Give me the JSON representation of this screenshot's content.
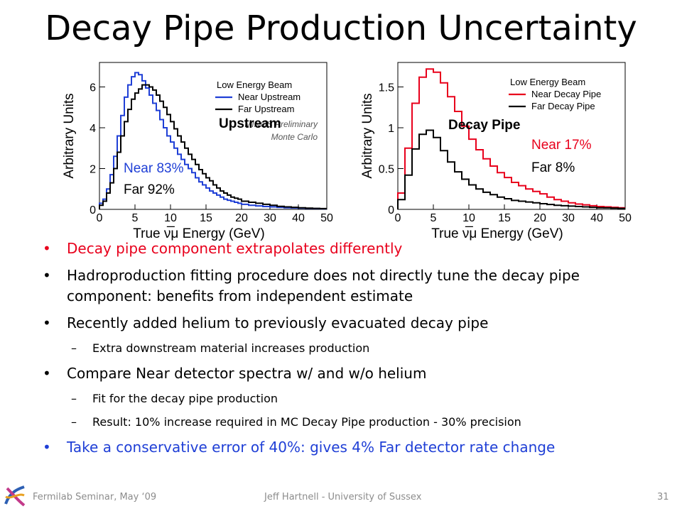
{
  "title": "Decay Pipe Production Uncertainty",
  "chart_data": [
    {
      "type": "line",
      "xlabel": "True ν̅μ Energy (GeV)",
      "ylabel": "Arbitrary Units",
      "overlay": "Upstream",
      "legend_title": "Low Energy Beam",
      "notes": [
        "MINOS Preliminary",
        "Monte Carlo"
      ],
      "legend_position": "upper-right",
      "step": true,
      "xscale": "piecewise (linear 0-20, compressed 20-50)",
      "xticks": [
        0,
        5,
        10,
        15,
        20,
        30,
        40,
        50
      ],
      "yticks": [
        0,
        2,
        4,
        6
      ],
      "ylim": [
        0,
        7.2
      ],
      "x_edges": [
        0,
        0.5,
        1,
        1.5,
        2,
        2.5,
        3,
        3.5,
        4,
        4.5,
        5,
        5.5,
        6,
        6.5,
        7,
        7.5,
        8,
        8.5,
        9,
        9.5,
        10,
        10.5,
        11,
        11.5,
        12,
        12.5,
        13,
        13.5,
        14,
        14.5,
        15,
        15.5,
        16,
        16.5,
        17,
        17.5,
        18,
        18.5,
        19,
        19.5,
        20,
        22.5,
        25,
        27.5,
        30,
        32.5,
        35,
        37.5,
        40,
        42.5,
        45,
        47.5,
        50
      ],
      "series": [
        {
          "name": "Near Upstream",
          "color": "#1f3fd6",
          "values": [
            0.3,
            0.5,
            1.0,
            1.7,
            2.6,
            3.6,
            4.6,
            5.5,
            6.1,
            6.5,
            6.7,
            6.6,
            6.3,
            5.95,
            5.6,
            5.2,
            4.85,
            4.4,
            4.0,
            3.6,
            3.3,
            3.0,
            2.7,
            2.45,
            2.2,
            2.0,
            1.8,
            1.55,
            1.35,
            1.2,
            1.05,
            0.9,
            0.8,
            0.7,
            0.6,
            0.5,
            0.45,
            0.4,
            0.35,
            0.3,
            0.25,
            0.2,
            0.17,
            0.14,
            0.12,
            0.1,
            0.08,
            0.07,
            0.06,
            0.05,
            0.04,
            0.03
          ]
        },
        {
          "name": "Far Upstream",
          "color": "#000000",
          "values": [
            0.2,
            0.4,
            0.8,
            1.3,
            2.0,
            2.8,
            3.6,
            4.3,
            4.9,
            5.4,
            5.7,
            5.9,
            6.1,
            6.1,
            6.0,
            5.85,
            5.6,
            5.3,
            5.0,
            4.65,
            4.3,
            3.95,
            3.6,
            3.3,
            3.0,
            2.7,
            2.45,
            2.2,
            1.95,
            1.75,
            1.55,
            1.4,
            1.2,
            1.05,
            0.9,
            0.8,
            0.7,
            0.6,
            0.55,
            0.5,
            0.4,
            0.35,
            0.3,
            0.25,
            0.2,
            0.15,
            0.12,
            0.1,
            0.08,
            0.06,
            0.05,
            0.04
          ]
        }
      ],
      "labels": {
        "near": "Near 83%",
        "far": "Far 92%"
      }
    },
    {
      "type": "line",
      "xlabel": "True ν̅μ Energy (GeV)",
      "ylabel": "Arbitrary Units",
      "overlay": "Decay Pipe",
      "legend_title": "Low Energy Beam",
      "legend_position": "upper-right",
      "step": true,
      "xscale": "piecewise (linear 0-20, compressed 20-50)",
      "xticks": [
        0,
        5,
        10,
        15,
        20,
        30,
        40,
        50
      ],
      "yticks": [
        0,
        0.5,
        1,
        1.5
      ],
      "yticklabels": [
        "0",
        "0.5",
        "1",
        "1.5"
      ],
      "ylim": [
        0,
        1.8
      ],
      "x_edges": [
        0,
        1,
        2,
        3,
        4,
        5,
        6,
        7,
        8,
        9,
        10,
        11,
        12,
        13,
        14,
        15,
        16,
        17,
        18,
        19,
        20,
        22.5,
        25,
        27.5,
        30,
        32.5,
        35,
        37.5,
        40,
        42.5,
        45,
        47.5,
        50
      ],
      "series": [
        {
          "name": "Near Decay Pipe",
          "color": "#e8001c",
          "values": [
            0.2,
            0.75,
            1.3,
            1.62,
            1.72,
            1.68,
            1.55,
            1.38,
            1.2,
            1.02,
            0.86,
            0.73,
            0.62,
            0.53,
            0.45,
            0.39,
            0.33,
            0.29,
            0.25,
            0.22,
            0.19,
            0.15,
            0.12,
            0.1,
            0.08,
            0.065,
            0.055,
            0.045,
            0.035,
            0.03,
            0.025,
            0.02
          ]
        },
        {
          "name": "Far Decay Pipe",
          "color": "#000000",
          "values": [
            0.12,
            0.42,
            0.74,
            0.92,
            0.97,
            0.88,
            0.72,
            0.58,
            0.46,
            0.37,
            0.3,
            0.25,
            0.21,
            0.18,
            0.15,
            0.13,
            0.11,
            0.1,
            0.09,
            0.08,
            0.07,
            0.06,
            0.05,
            0.045,
            0.04,
            0.035,
            0.03,
            0.025,
            0.02,
            0.018,
            0.015,
            0.012
          ]
        }
      ],
      "labels": {
        "near": "Near 17%",
        "far": "Far 8%"
      }
    }
  ],
  "bullets": [
    {
      "text": "Decay pipe component extrapolates differently",
      "color": "red"
    },
    {
      "text": "Hadroproduction fitting procedure does not directly tune the decay pipe component: benefits from independent estimate"
    },
    {
      "text": "Recently added helium to previously evacuated decay pipe",
      "sub": [
        "Extra downstream material increases production"
      ]
    },
    {
      "text": "Compare Near detector spectra w/ and w/o helium",
      "sub": [
        "Fit for the decay pipe production",
        "Result: 10% increase required in MC Decay Pipe production - 30% precision"
      ]
    },
    {
      "text": "Take a conservative error of 40%: gives 4% Far detector rate change",
      "color": "blue"
    }
  ],
  "footer": {
    "left": "Fermilab Seminar, May ‘09",
    "center": "Jeff Hartnell - University of Sussex",
    "page": "31"
  },
  "colors": {
    "accent_red": "#e8001c",
    "accent_blue": "#1f3fd6"
  }
}
